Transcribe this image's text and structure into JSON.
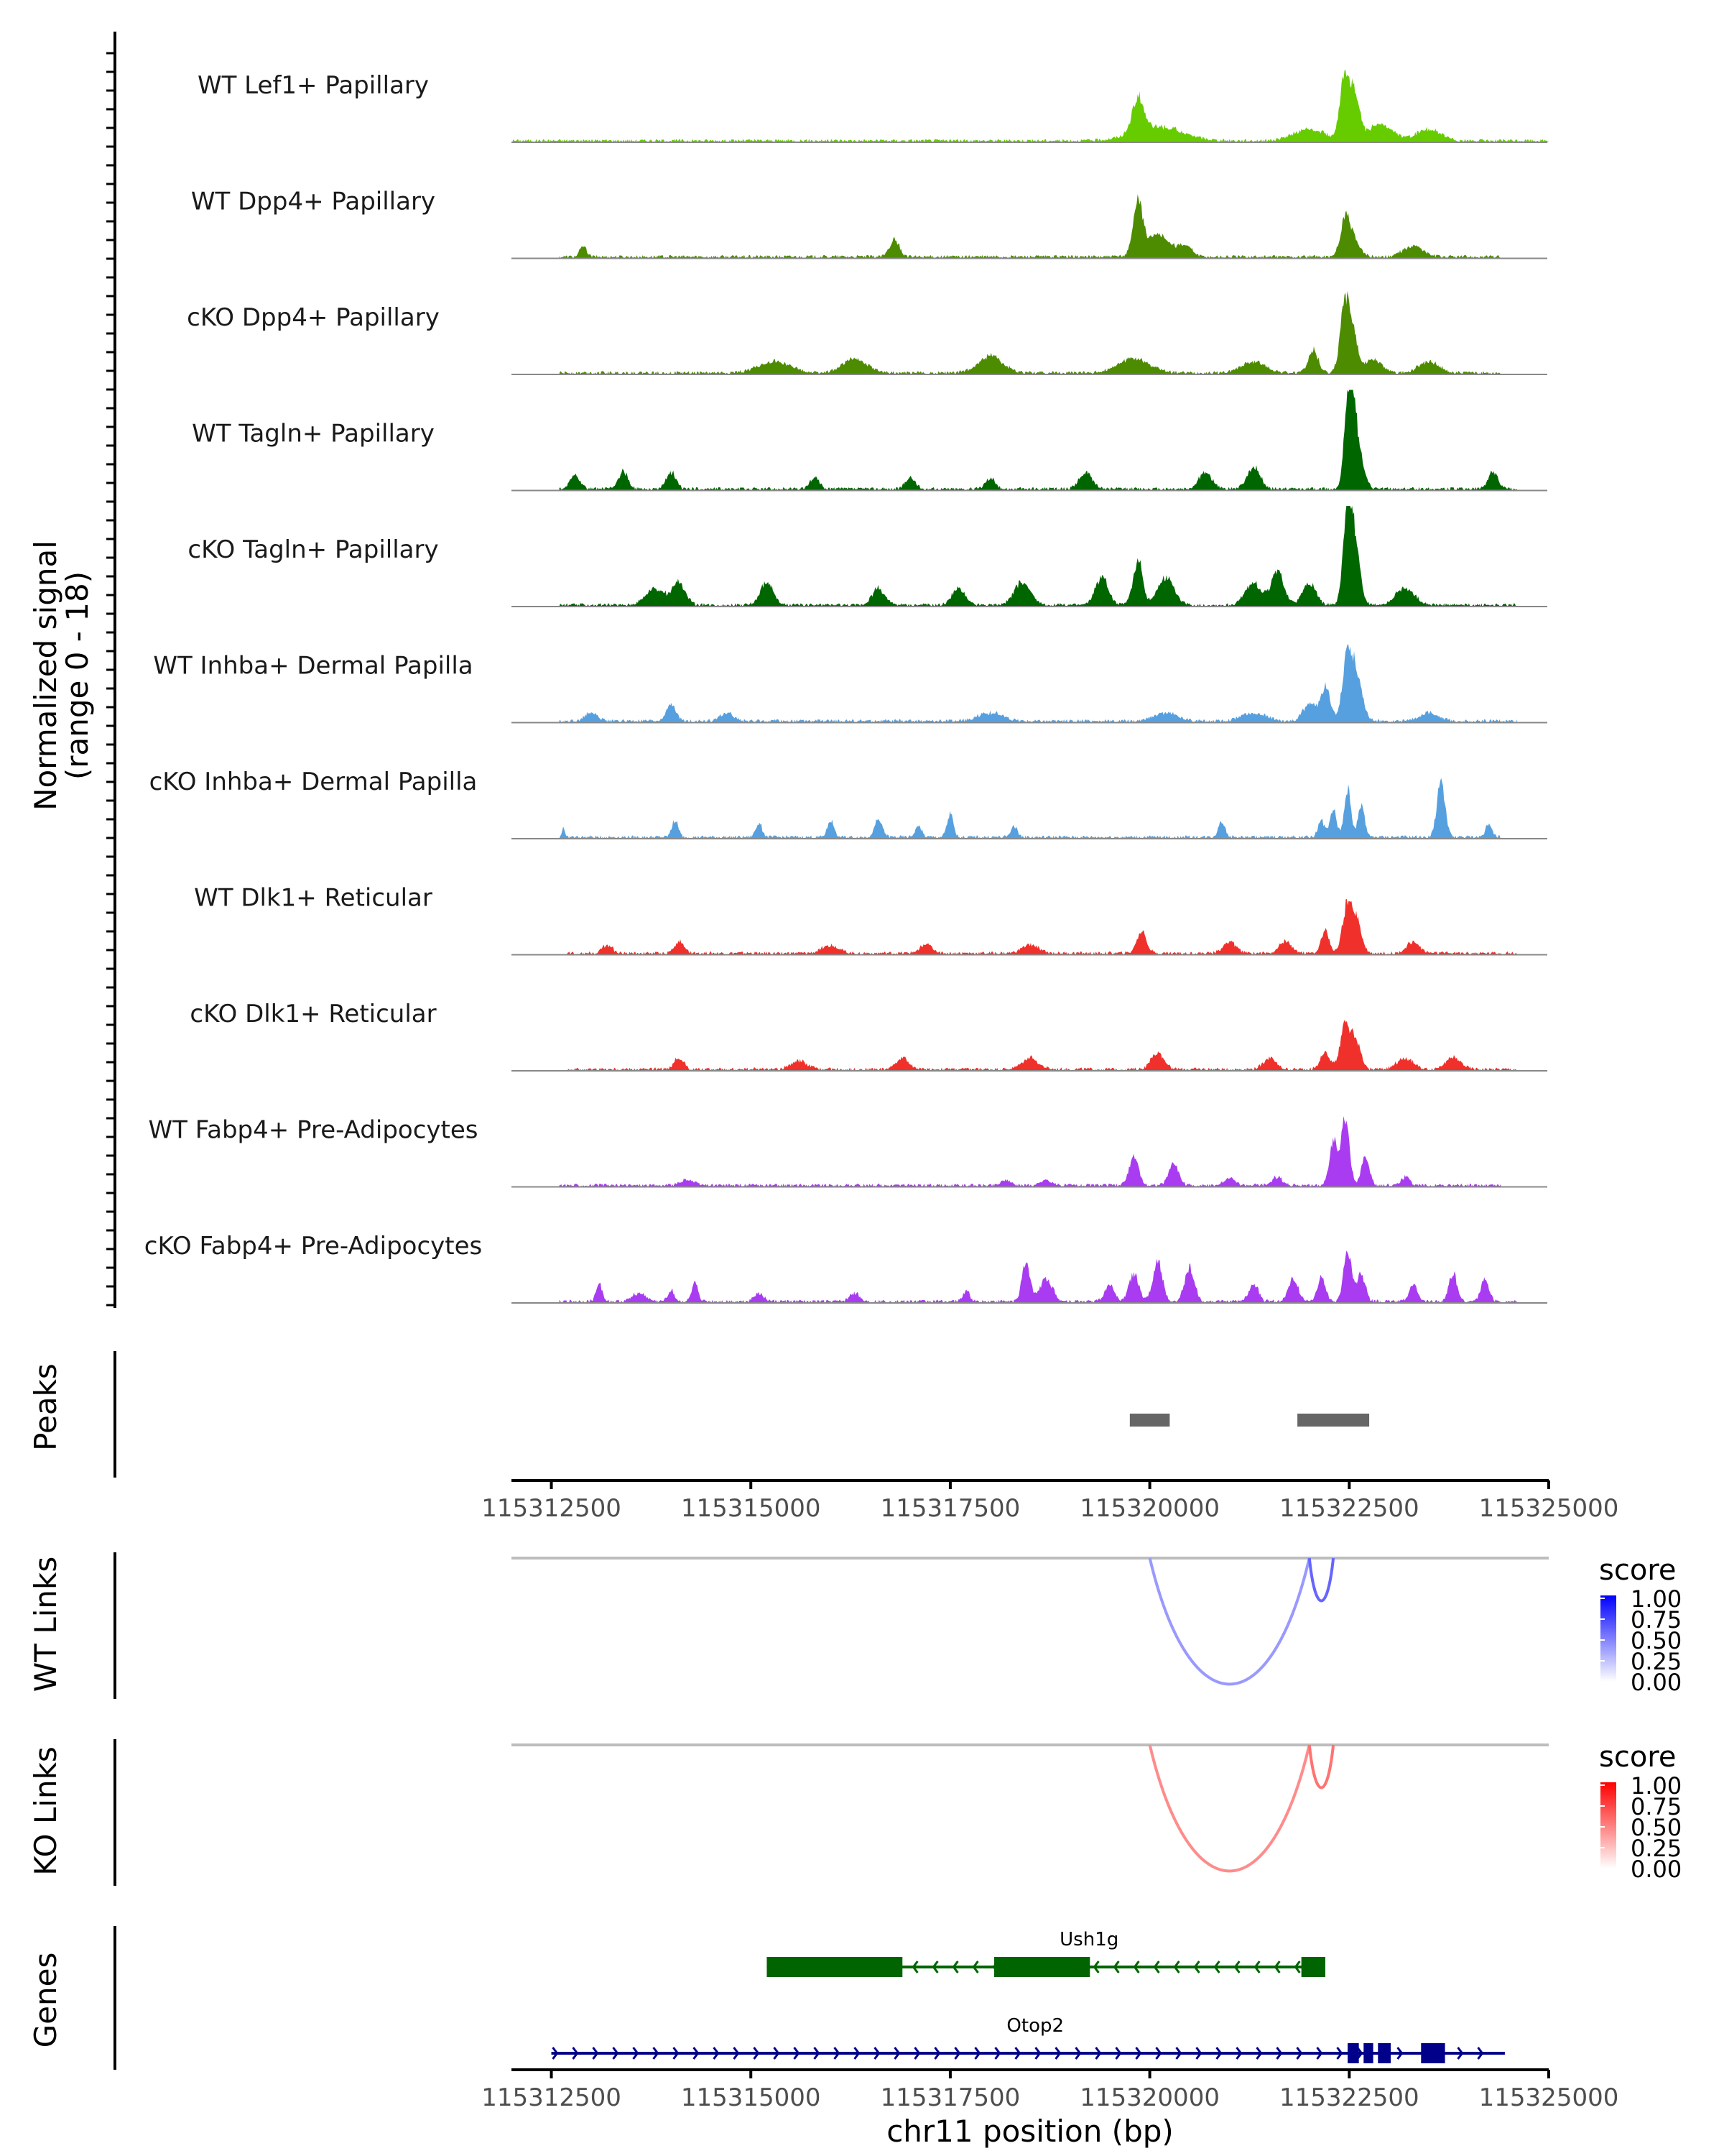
{
  "chart_data": {
    "type": "area",
    "chromosome": "chr11",
    "xlim": [
      115312000,
      115325000
    ],
    "signal_range": [
      0,
      18
    ],
    "ylabel": [
      "Normalized signal",
      "(range 0 - 18)"
    ],
    "xlabel": "chr11 position (bp)",
    "x_ticks": [
      115312500,
      115315000,
      115317500,
      115320000,
      115322500,
      115325000
    ],
    "tracks": [
      {
        "name": "WT Lef1+ Papillary",
        "color": "#66cc00",
        "start": 115312000,
        "end": 115325000,
        "peaks": [
          [
            115319850,
            6,
            70
          ],
          [
            115320100,
            2.5,
            300
          ],
          [
            115322000,
            2,
            200
          ],
          [
            115322450,
            12,
            60
          ],
          [
            115322580,
            7,
            60
          ],
          [
            115322900,
            3,
            150
          ],
          [
            115323500,
            2,
            150
          ]
        ]
      },
      {
        "name": "WT Dpp4+ Papillary",
        "color": "#4d8c00",
        "start": 115312600,
        "end": 115324400,
        "peaks": [
          [
            115312900,
            2,
            40
          ],
          [
            115316800,
            3,
            60
          ],
          [
            115319850,
            9,
            60
          ],
          [
            115320100,
            4,
            150
          ],
          [
            115320450,
            2,
            80
          ],
          [
            115322450,
            6,
            60
          ],
          [
            115322550,
            3,
            80
          ],
          [
            115323300,
            2,
            120
          ]
        ]
      },
      {
        "name": "cKO Dpp4+ Papillary",
        "color": "#4d8c00",
        "start": 115312600,
        "end": 115324400,
        "peaks": [
          [
            115315300,
            2,
            200
          ],
          [
            115316300,
            2.5,
            150
          ],
          [
            115318000,
            3,
            150
          ],
          [
            115319800,
            2.5,
            200
          ],
          [
            115321300,
            2,
            150
          ],
          [
            115322050,
            4,
            60
          ],
          [
            115322450,
            12,
            60
          ],
          [
            115322550,
            6,
            60
          ],
          [
            115322800,
            2.5,
            100
          ],
          [
            115323500,
            2,
            120
          ]
        ]
      },
      {
        "name": "WT Tagln+ Papillary",
        "color": "#006600",
        "start": 115312600,
        "end": 115324600,
        "peaks": [
          [
            115312800,
            2.5,
            60
          ],
          [
            115313400,
            3,
            60
          ],
          [
            115314000,
            3,
            60
          ],
          [
            115315800,
            2,
            60
          ],
          [
            115317000,
            2,
            60
          ],
          [
            115318000,
            2,
            60
          ],
          [
            115319200,
            3,
            80
          ],
          [
            115320700,
            3,
            80
          ],
          [
            115321300,
            4,
            80
          ],
          [
            115322500,
            18,
            55
          ],
          [
            115322600,
            8,
            70
          ],
          [
            115324300,
            3,
            60
          ]
        ]
      },
      {
        "name": "cKO Tagln+ Papillary",
        "color": "#006600",
        "start": 115312600,
        "end": 115324600,
        "peaks": [
          [
            115313800,
            3,
            120
          ],
          [
            115314100,
            4,
            80
          ],
          [
            115315200,
            4,
            80
          ],
          [
            115316600,
            3,
            80
          ],
          [
            115317600,
            3,
            80
          ],
          [
            115318400,
            4,
            100
          ],
          [
            115319400,
            5,
            80
          ],
          [
            115319850,
            8,
            60
          ],
          [
            115320200,
            5,
            100
          ],
          [
            115321300,
            4,
            100
          ],
          [
            115321600,
            6,
            80
          ],
          [
            115322000,
            4,
            80
          ],
          [
            115322480,
            17,
            55
          ],
          [
            115322580,
            10,
            60
          ],
          [
            115323200,
            3,
            120
          ]
        ]
      },
      {
        "name": "WT Inhba+ Dermal Papilla",
        "color": "#56a0e0",
        "start": 115312600,
        "end": 115324600,
        "peaks": [
          [
            115313000,
            1.5,
            80
          ],
          [
            115314000,
            3,
            60
          ],
          [
            115314700,
            1.5,
            80
          ],
          [
            115318000,
            1.5,
            150
          ],
          [
            115320200,
            1.5,
            150
          ],
          [
            115321300,
            1.5,
            150
          ],
          [
            115322000,
            3,
            80
          ],
          [
            115322200,
            6,
            60
          ],
          [
            115322480,
            12,
            60
          ],
          [
            115322600,
            7,
            70
          ],
          [
            115323500,
            1.5,
            120
          ]
        ]
      },
      {
        "name": "cKO Inhba+ Dermal Papilla",
        "color": "#56a0e0",
        "start": 115312600,
        "end": 115324400,
        "peaks": [
          [
            115312650,
            2,
            15
          ],
          [
            115314050,
            3,
            40
          ],
          [
            115315100,
            2.5,
            40
          ],
          [
            115316000,
            3,
            40
          ],
          [
            115316600,
            3,
            50
          ],
          [
            115317100,
            2,
            40
          ],
          [
            115317500,
            4,
            40
          ],
          [
            115318300,
            2,
            40
          ],
          [
            115320900,
            3,
            40
          ],
          [
            115322150,
            3,
            40
          ],
          [
            115322300,
            5,
            40
          ],
          [
            115322480,
            9,
            40
          ],
          [
            115322650,
            6,
            40
          ],
          [
            115323650,
            10,
            50
          ],
          [
            115324250,
            2.5,
            40
          ]
        ]
      },
      {
        "name": "WT Dlk1+ Reticular",
        "color": "#f0302a",
        "start": 115312700,
        "end": 115324600,
        "peaks": [
          [
            115313200,
            1.5,
            60
          ],
          [
            115314100,
            2,
            60
          ],
          [
            115316000,
            1.5,
            100
          ],
          [
            115317200,
            1.5,
            80
          ],
          [
            115318500,
            1.5,
            100
          ],
          [
            115319900,
            4,
            60
          ],
          [
            115321000,
            2,
            80
          ],
          [
            115321700,
            2,
            80
          ],
          [
            115322200,
            4,
            50
          ],
          [
            115322480,
            9,
            60
          ],
          [
            115322600,
            5,
            60
          ],
          [
            115323300,
            2,
            80
          ]
        ]
      },
      {
        "name": "cKO Dlk1+ Reticular",
        "color": "#f0302a",
        "start": 115312700,
        "end": 115324600,
        "peaks": [
          [
            115314100,
            2,
            60
          ],
          [
            115315600,
            1.5,
            100
          ],
          [
            115316900,
            2,
            80
          ],
          [
            115318500,
            2,
            100
          ],
          [
            115320100,
            3,
            80
          ],
          [
            115321500,
            2,
            80
          ],
          [
            115322200,
            3,
            60
          ],
          [
            115322450,
            8,
            60
          ],
          [
            115322580,
            5,
            60
          ],
          [
            115323200,
            2,
            100
          ],
          [
            115323800,
            2,
            100
          ]
        ]
      },
      {
        "name": "WT Fabp4+ Pre-Adipocytes",
        "color": "#a93cf0",
        "start": 115312600,
        "end": 115324400,
        "peaks": [
          [
            115314200,
            1,
            80
          ],
          [
            115318200,
            1,
            60
          ],
          [
            115318700,
            1,
            60
          ],
          [
            115319800,
            5,
            60
          ],
          [
            115320300,
            4,
            60
          ],
          [
            115321000,
            1.5,
            60
          ],
          [
            115321600,
            1.5,
            60
          ],
          [
            115322300,
            8,
            50
          ],
          [
            115322450,
            12,
            50
          ],
          [
            115322700,
            5,
            50
          ],
          [
            115323200,
            1.5,
            50
          ]
        ]
      },
      {
        "name": "cKO Fabp4+ Pre-Adipocytes",
        "color": "#a93cf0",
        "start": 115312600,
        "end": 115324600,
        "peaks": [
          [
            115313100,
            3,
            40
          ],
          [
            115313600,
            1.5,
            80
          ],
          [
            115314000,
            2,
            40
          ],
          [
            115314300,
            3,
            40
          ],
          [
            115315100,
            1.5,
            60
          ],
          [
            115316300,
            1.5,
            60
          ],
          [
            115317700,
            2,
            40
          ],
          [
            115318450,
            7,
            50
          ],
          [
            115318700,
            4,
            80
          ],
          [
            115319500,
            3,
            60
          ],
          [
            115319800,
            5,
            60
          ],
          [
            115320100,
            7,
            60
          ],
          [
            115320500,
            6,
            60
          ],
          [
            115321300,
            3,
            60
          ],
          [
            115321800,
            4,
            60
          ],
          [
            115322150,
            4,
            50
          ],
          [
            115322480,
            9,
            50
          ],
          [
            115322650,
            5,
            50
          ],
          [
            115323300,
            3,
            50
          ],
          [
            115323800,
            5,
            50
          ],
          [
            115324200,
            4,
            50
          ]
        ]
      }
    ],
    "peaks_track": {
      "label": "Peaks",
      "color": "#666666",
      "regions": [
        [
          115319750,
          115320250
        ],
        [
          115321850,
          115322750
        ]
      ]
    },
    "links": [
      {
        "label": "WT Links",
        "legend_title": "score",
        "legend_ticks": [
          "1.00",
          "0.75",
          "0.50",
          "0.25",
          "0.00"
        ],
        "color_high": "#0000ff",
        "color_low": "#ffffff",
        "arcs": [
          {
            "start": 115320000,
            "end": 115322000,
            "score": 0.4
          },
          {
            "start": 115322000,
            "end": 115322300,
            "score": 0.6
          }
        ]
      },
      {
        "label": "KO Links",
        "legend_title": "score",
        "legend_ticks": [
          "1.00",
          "0.75",
          "0.50",
          "0.25",
          "0.00"
        ],
        "color_high": "#ff0000",
        "color_low": "#ffffff",
        "arcs": [
          {
            "start": 115320000,
            "end": 115322000,
            "score": 0.45
          },
          {
            "start": 115322000,
            "end": 115322300,
            "score": 0.55
          }
        ]
      }
    ],
    "genes_track": {
      "label": "Genes",
      "genes": [
        {
          "name": "Ush1g",
          "strand": "-",
          "color": "#006400",
          "start": 115315200,
          "end": 115322200,
          "exons": [
            [
              115315200,
              115316900
            ],
            [
              115318050,
              115319250
            ],
            [
              115321900,
              115322200
            ]
          ]
        },
        {
          "name": "Otop2",
          "strand": "+",
          "color": "#00008b",
          "start": 115312500,
          "end": 115324450,
          "exons": [
            [
              115322480,
              115322620
            ],
            [
              115322680,
              115322800
            ],
            [
              115322860,
              115323020
            ],
            [
              115323400,
              115323700
            ]
          ]
        }
      ]
    }
  }
}
